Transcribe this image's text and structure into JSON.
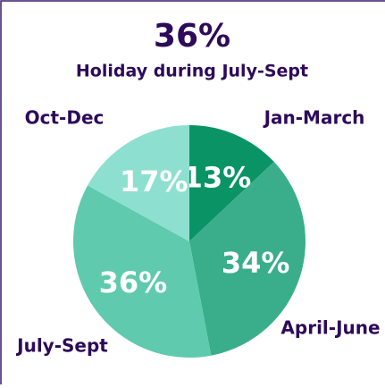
{
  "chart_data": {
    "type": "pie",
    "title": "36%",
    "subtitle": "Holiday during July-Sept",
    "categories": [
      "Jan-March",
      "April-June",
      "July-Sept",
      "Oct-Dec"
    ],
    "values": [
      13,
      34,
      36,
      17
    ],
    "value_labels": [
      "13%",
      "34%",
      "36%",
      "17%"
    ],
    "colors": [
      "#0a9466",
      "#3aae8a",
      "#5fcaad",
      "#8de0cf"
    ]
  }
}
